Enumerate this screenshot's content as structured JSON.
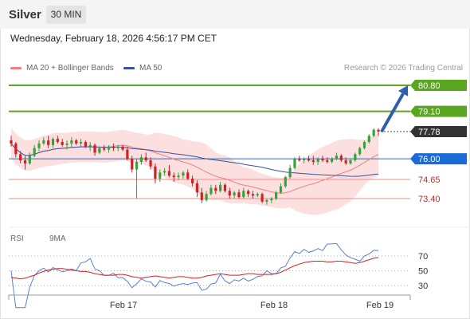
{
  "header": {
    "instrument": "Silver",
    "timeframe": "30 MIN",
    "timestamp": "Wednesday, February 18, 2026 4:56:17 PM CET"
  },
  "legend": {
    "ma20_label": "MA 20 + Bollinger Bands",
    "ma50_label": "MA 50",
    "copyright": "Research © 2026 Trading Central"
  },
  "rsi_legend": {
    "rsi_label": "RSI",
    "ma_label": "9MA"
  },
  "colors": {
    "up": "#3aa03a",
    "down": "#cc2222",
    "resistance": "#5aa61e",
    "current": "#333333",
    "pivot": "#1a6bd6",
    "support": "#f28a8a",
    "bollinger": "#fbd5d5",
    "ma20": "#f08080",
    "ma50": "#3a4fa0",
    "arrow": "#2f5fa8",
    "rsi": "#5a7fd6",
    "rsi_ma": "#d82020"
  },
  "chart_data": {
    "type": "candlestick",
    "x_axis": {
      "ticks": [
        "Feb 17",
        "Feb 18",
        "Feb 19"
      ]
    },
    "levels": [
      {
        "name": "resistance-2",
        "value": 80.8,
        "label": "80.80",
        "kind": "resistance"
      },
      {
        "name": "resistance-1",
        "value": 79.1,
        "label": "79.10",
        "kind": "resistance"
      },
      {
        "name": "current",
        "value": 77.78,
        "label": "77.78",
        "kind": "current"
      },
      {
        "name": "pivot",
        "value": 76.0,
        "label": "76.00",
        "kind": "pivot"
      },
      {
        "name": "support-1",
        "value": 74.65,
        "label": "74.65",
        "kind": "support"
      },
      {
        "name": "support-2",
        "value": 73.4,
        "label": "73.40",
        "kind": "support"
      }
    ],
    "forecast_arrow": {
      "from": 77.78,
      "to": 80.8,
      "direction": "up"
    },
    "candles": [
      [
        77.2,
        77.5,
        76.8,
        77.0
      ],
      [
        77.0,
        77.1,
        76.1,
        76.3
      ],
      [
        76.3,
        76.5,
        75.7,
        75.9
      ],
      [
        75.9,
        76.2,
        75.3,
        75.7
      ],
      [
        75.7,
        76.4,
        75.6,
        76.2
      ],
      [
        76.2,
        76.9,
        76.1,
        76.7
      ],
      [
        76.7,
        77.2,
        76.5,
        77.0
      ],
      [
        77.0,
        77.4,
        76.9,
        77.2
      ],
      [
        77.2,
        77.5,
        76.7,
        76.9
      ],
      [
        76.9,
        77.4,
        76.7,
        77.3
      ],
      [
        77.3,
        77.5,
        77.0,
        77.1
      ],
      [
        77.1,
        77.3,
        76.8,
        76.9
      ],
      [
        76.9,
        77.2,
        76.6,
        77.0
      ],
      [
        77.0,
        77.4,
        76.7,
        77.2
      ],
      [
        77.2,
        77.3,
        76.9,
        77.0
      ],
      [
        77.0,
        77.3,
        76.8,
        77.1
      ],
      [
        77.1,
        77.2,
        76.7,
        76.8
      ],
      [
        76.8,
        77.1,
        76.5,
        76.9
      ],
      [
        76.9,
        77.0,
        76.2,
        76.4
      ],
      [
        76.4,
        76.8,
        76.3,
        76.7
      ],
      [
        76.7,
        76.9,
        76.5,
        76.6
      ],
      [
        76.6,
        76.9,
        76.4,
        76.8
      ],
      [
        76.8,
        77.0,
        76.5,
        76.7
      ],
      [
        76.7,
        76.9,
        76.5,
        76.8
      ],
      [
        76.8,
        76.9,
        76.5,
        76.6
      ],
      [
        76.6,
        76.8,
        75.9,
        76.0
      ],
      [
        76.0,
        76.2,
        75.1,
        75.3
      ],
      [
        75.3,
        76.0,
        73.4,
        75.8
      ],
      [
        75.8,
        76.3,
        75.6,
        76.1
      ],
      [
        76.1,
        76.4,
        75.8,
        75.9
      ],
      [
        75.9,
        76.1,
        75.3,
        75.5
      ],
      [
        75.5,
        75.7,
        74.4,
        74.7
      ],
      [
        74.7,
        75.3,
        74.5,
        75.1
      ],
      [
        75.1,
        75.4,
        74.9,
        75.2
      ],
      [
        75.2,
        75.6,
        74.8,
        74.9
      ],
      [
        74.9,
        75.1,
        74.5,
        74.8
      ],
      [
        74.8,
        75.1,
        74.6,
        74.9
      ],
      [
        74.9,
        75.2,
        74.7,
        75.1
      ],
      [
        75.1,
        75.3,
        74.6,
        74.7
      ],
      [
        74.7,
        74.9,
        74.2,
        74.4
      ],
      [
        74.4,
        74.6,
        73.5,
        73.8
      ],
      [
        73.8,
        74.1,
        73.1,
        73.3
      ],
      [
        73.3,
        73.9,
        73.2,
        73.7
      ],
      [
        73.7,
        74.3,
        73.6,
        74.1
      ],
      [
        74.1,
        74.3,
        73.7,
        73.9
      ],
      [
        73.9,
        74.5,
        73.8,
        74.3
      ],
      [
        74.3,
        74.4,
        73.8,
        73.9
      ],
      [
        73.9,
        74.1,
        73.4,
        73.6
      ],
      [
        73.6,
        73.9,
        73.4,
        73.8
      ],
      [
        73.8,
        74.0,
        73.4,
        73.5
      ],
      [
        73.5,
        74.1,
        73.4,
        73.9
      ],
      [
        73.9,
        74.0,
        73.5,
        73.7
      ],
      [
        73.7,
        73.9,
        73.4,
        73.6
      ],
      [
        73.6,
        73.8,
        73.5,
        73.7
      ],
      [
        73.7,
        73.8,
        73.1,
        73.2
      ],
      [
        73.2,
        73.4,
        73.0,
        73.3
      ],
      [
        73.3,
        73.5,
        73.1,
        73.4
      ],
      [
        73.4,
        73.9,
        73.3,
        73.8
      ],
      [
        73.8,
        74.4,
        73.7,
        74.2
      ],
      [
        74.2,
        74.9,
        74.1,
        74.8
      ],
      [
        74.8,
        75.6,
        74.7,
        75.4
      ],
      [
        75.4,
        76.1,
        75.3,
        76.0
      ],
      [
        76.0,
        76.2,
        75.8,
        75.9
      ],
      [
        75.9,
        76.1,
        75.7,
        76.0
      ],
      [
        76.0,
        76.2,
        75.8,
        75.9
      ],
      [
        75.9,
        76.2,
        75.6,
        75.8
      ],
      [
        75.8,
        76.1,
        75.6,
        76.0
      ],
      [
        76.0,
        76.2,
        75.8,
        75.9
      ],
      [
        75.9,
        76.1,
        75.7,
        75.8
      ],
      [
        75.8,
        76.1,
        75.7,
        76.0
      ],
      [
        76.0,
        76.4,
        75.9,
        76.2
      ],
      [
        76.2,
        76.3,
        75.8,
        75.9
      ],
      [
        75.9,
        76.1,
        75.6,
        75.7
      ],
      [
        75.7,
        76.0,
        75.6,
        75.9
      ],
      [
        75.9,
        76.4,
        75.8,
        76.3
      ],
      [
        76.3,
        76.8,
        76.2,
        76.7
      ],
      [
        76.7,
        77.2,
        76.6,
        77.1
      ],
      [
        77.1,
        77.6,
        77.0,
        77.5
      ],
      [
        77.5,
        78.0,
        77.4,
        77.9
      ],
      [
        77.9,
        78.0,
        77.5,
        77.78
      ]
    ],
    "rsi_axis": {
      "ticks": [
        70,
        50,
        30
      ]
    },
    "rsi_ma": [
      41,
      40,
      39,
      40,
      42,
      44,
      47,
      49,
      51,
      52,
      53,
      53,
      52,
      51,
      50,
      49,
      49,
      48,
      46,
      45,
      44,
      44,
      44,
      45,
      45,
      44,
      42,
      41,
      40,
      41,
      42,
      43,
      42,
      41,
      40,
      41,
      42,
      42,
      41,
      40,
      40,
      41,
      43,
      44,
      45,
      46,
      45,
      44,
      44,
      44,
      45,
      46,
      46,
      45,
      45,
      45,
      45,
      46,
      48,
      51,
      54,
      57,
      59,
      61,
      62,
      63,
      63,
      63,
      62,
      62,
      63,
      63,
      62,
      61,
      60,
      61,
      63,
      65,
      67,
      68
    ]
  }
}
